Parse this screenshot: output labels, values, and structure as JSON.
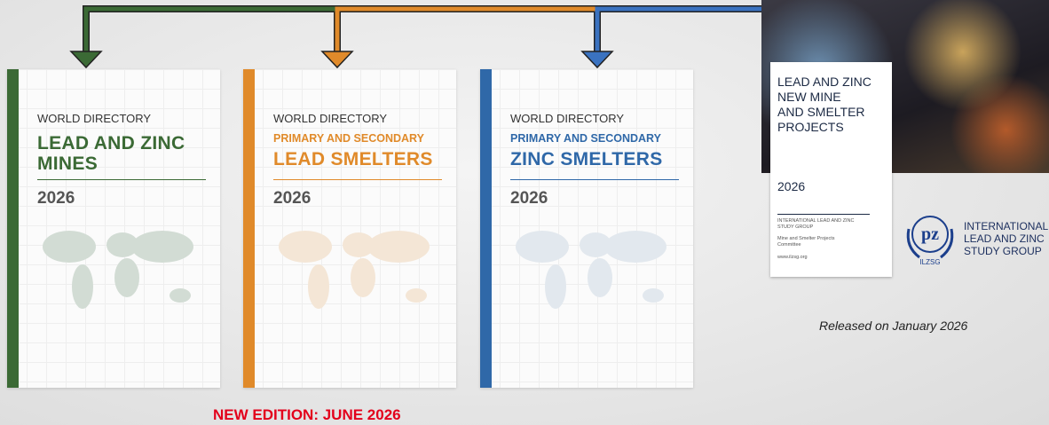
{
  "covers": [
    {
      "kicker": "WORLD DIRECTORY",
      "title": [
        "LEAD AND ZINC",
        "MINES"
      ],
      "year": "2026"
    },
    {
      "kicker": "WORLD DIRECTORY",
      "subtitle": "PRIMARY AND SECONDARY",
      "title": [
        "LEAD SMELTERS"
      ],
      "year": "2026"
    },
    {
      "kicker": "WORLD DIRECTORY",
      "subtitle": "PRIMARY AND SECONDARY",
      "title": [
        "ZINC SMELTERS"
      ],
      "year": "2026"
    }
  ],
  "project_report": {
    "title": [
      "LEAD AND ZINC",
      "NEW MINE",
      "AND SMELTER",
      "PROJECTS"
    ],
    "year": "2026",
    "org": "INTERNATIONAL LEAD AND ZINC STUDY GROUP",
    "committee": "Mine and Smelter Projects Committee",
    "url": "www.ilzsg.org"
  },
  "logo": {
    "mark": "ILZSG",
    "name": [
      "INTERNATIONAL",
      "LEAD AND ZINC",
      "STUDY GROUP"
    ]
  },
  "caption": "Released on January 2026",
  "new_edition": "NEW EDITION: JUNE 2026"
}
